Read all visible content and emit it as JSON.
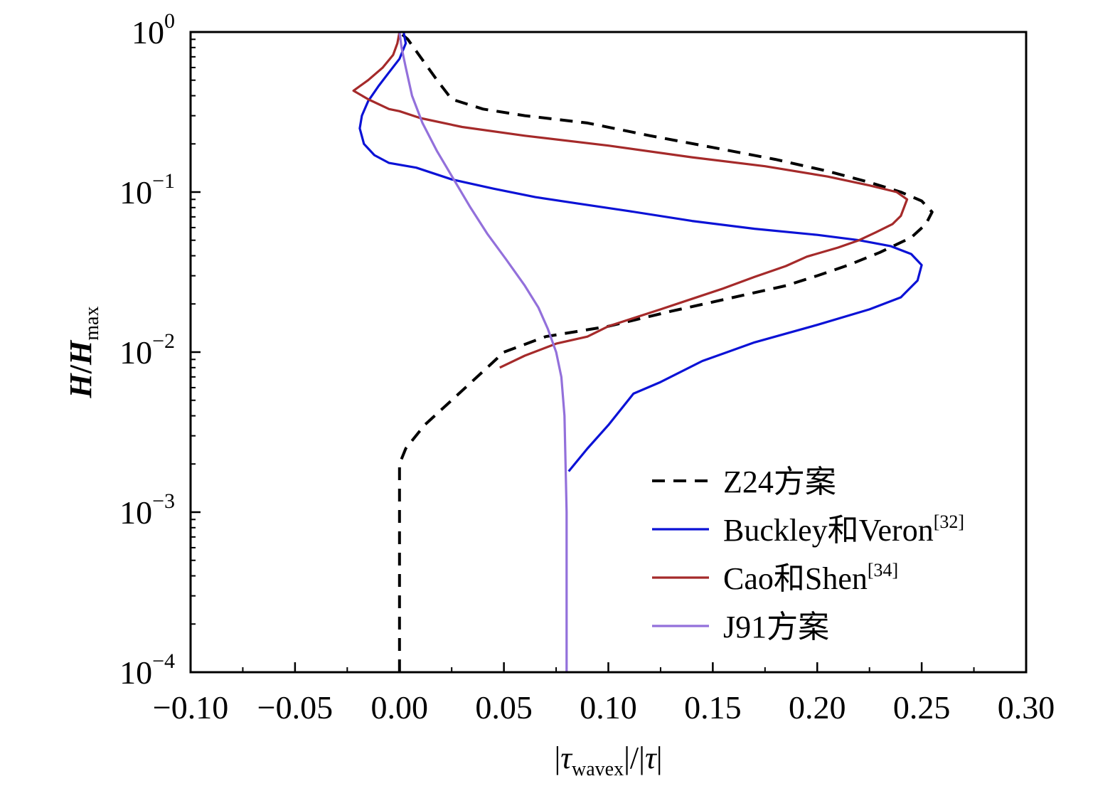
{
  "chart_data": {
    "type": "line",
    "xlabel": {
      "bar_open": "|",
      "symbol": "τ",
      "subscript": "wavex",
      "bar_close": "|",
      "slash": "/",
      "bar_open2": "|",
      "symbol2": "τ",
      "bar_close2": "|"
    },
    "ylabel": {
      "main": "H",
      "slash": "/",
      "main2": "H",
      "subscript": "max"
    },
    "xlim": [
      -0.1,
      0.3
    ],
    "ylim": [
      0.0001,
      1
    ],
    "yscale": "log",
    "grid": false,
    "legend_position": "bottom-right",
    "x_ticks": [
      {
        "value": -0.1,
        "label": "−0.10"
      },
      {
        "value": -0.05,
        "label": "−0.05"
      },
      {
        "value": 0.0,
        "label": "0.00"
      },
      {
        "value": 0.05,
        "label": "0.05"
      },
      {
        "value": 0.1,
        "label": "0.10"
      },
      {
        "value": 0.15,
        "label": "0.15"
      },
      {
        "value": 0.2,
        "label": "0.20"
      },
      {
        "value": 0.25,
        "label": "0.25"
      },
      {
        "value": 0.3,
        "label": "0.30"
      }
    ],
    "y_ticks": [
      {
        "value": 1,
        "base": "10",
        "exp": "0"
      },
      {
        "value": 0.1,
        "base": "10",
        "exp": "−1"
      },
      {
        "value": 0.01,
        "base": "10",
        "exp": "−2"
      },
      {
        "value": 0.001,
        "base": "10",
        "exp": "−3"
      },
      {
        "value": 0.0001,
        "base": "10",
        "exp": "−4"
      }
    ],
    "series": [
      {
        "name": "Z24方案",
        "name_sup": "",
        "color": "#000000",
        "style": "dashed",
        "x": [
          0.0,
          0.0,
          0.0,
          0.0,
          0.0,
          0.003,
          0.012,
          0.025,
          0.042,
          0.05,
          0.07,
          0.1,
          0.13,
          0.16,
          0.185,
          0.2,
          0.215,
          0.23,
          0.245,
          0.252,
          0.255,
          0.25,
          0.24,
          0.225,
          0.205,
          0.18,
          0.15,
          0.12,
          0.09,
          0.06,
          0.04,
          0.025,
          0.018,
          0.01,
          0.004,
          0.0
        ],
        "y": [
          0.0001,
          0.0005,
          0.001,
          0.0015,
          0.002,
          0.0025,
          0.0035,
          0.005,
          0.008,
          0.01,
          0.0125,
          0.0145,
          0.018,
          0.022,
          0.026,
          0.03,
          0.035,
          0.042,
          0.052,
          0.063,
          0.075,
          0.088,
          0.1,
          0.115,
          0.135,
          0.16,
          0.19,
          0.225,
          0.27,
          0.3,
          0.33,
          0.38,
          0.5,
          0.7,
          0.9,
          1.0
        ]
      },
      {
        "name": "Buckley和Veron",
        "name_sup": "[32]",
        "color": "#0b12d6",
        "style": "solid",
        "x": [
          0.081,
          0.09,
          0.1,
          0.112,
          0.125,
          0.145,
          0.17,
          0.2,
          0.225,
          0.24,
          0.248,
          0.25,
          0.245,
          0.235,
          0.22,
          0.2,
          0.17,
          0.14,
          0.11,
          0.085,
          0.065,
          0.045,
          0.025,
          0.008,
          -0.005,
          -0.012,
          -0.017,
          -0.019,
          -0.018,
          -0.015,
          -0.01,
          -0.005,
          0.0,
          0.003,
          0.002
        ],
        "y": [
          0.0018,
          0.0025,
          0.0035,
          0.0055,
          0.0065,
          0.0088,
          0.0115,
          0.0148,
          0.0185,
          0.022,
          0.028,
          0.035,
          0.041,
          0.046,
          0.05,
          0.054,
          0.059,
          0.066,
          0.076,
          0.085,
          0.093,
          0.105,
          0.12,
          0.142,
          0.152,
          0.17,
          0.2,
          0.25,
          0.3,
          0.37,
          0.46,
          0.56,
          0.68,
          0.85,
          1.0
        ]
      },
      {
        "name": "Cao和Shen",
        "name_sup": "[34]",
        "color": "#a52a2a",
        "style": "solid",
        "x": [
          0.048,
          0.06,
          0.075,
          0.09,
          0.1,
          0.11,
          0.125,
          0.14,
          0.155,
          0.17,
          0.185,
          0.195,
          0.21,
          0.22,
          0.228,
          0.236,
          0.24,
          0.243,
          0.238,
          0.225,
          0.205,
          0.175,
          0.14,
          0.1,
          0.06,
          0.03,
          0.01,
          0.0,
          -0.005,
          -0.015,
          -0.022,
          -0.015,
          -0.008,
          -0.003,
          -0.001,
          0.0
        ],
        "y": [
          0.008,
          0.0095,
          0.0113,
          0.0125,
          0.0145,
          0.016,
          0.0185,
          0.0215,
          0.025,
          0.0295,
          0.0345,
          0.0395,
          0.045,
          0.05,
          0.056,
          0.063,
          0.071,
          0.09,
          0.1,
          0.11,
          0.125,
          0.145,
          0.165,
          0.195,
          0.225,
          0.255,
          0.29,
          0.32,
          0.33,
          0.38,
          0.43,
          0.5,
          0.6,
          0.72,
          0.85,
          1.0
        ]
      },
      {
        "name": "J91方案",
        "name_sup": "",
        "color": "#9370db",
        "style": "solid",
        "x": [
          0.08,
          0.08,
          0.08,
          0.0795,
          0.079,
          0.0775,
          0.075,
          0.071,
          0.0665,
          0.06,
          0.051,
          0.042,
          0.034,
          0.026,
          0.018,
          0.011,
          0.006,
          0.003,
          0.001,
          0.0
        ],
        "y": [
          0.0001,
          0.0005,
          0.001,
          0.002,
          0.004,
          0.007,
          0.01,
          0.014,
          0.019,
          0.026,
          0.038,
          0.055,
          0.08,
          0.12,
          0.18,
          0.27,
          0.4,
          0.6,
          0.8,
          1.0
        ]
      }
    ]
  }
}
